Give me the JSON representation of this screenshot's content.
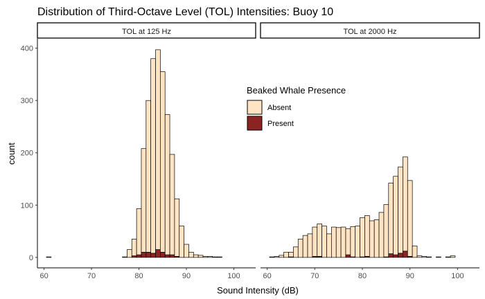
{
  "chart_data": {
    "type": "bar",
    "title": "Distribution of Third-Octave Level (TOL) Intensities: Buoy 10",
    "xlabel": "Sound Intensity (dB)",
    "ylabel": "count",
    "xlim": [
      58.6,
      104.6
    ],
    "ylim": [
      -20,
      418
    ],
    "x_ticks": [
      60,
      70,
      80,
      90,
      100
    ],
    "y_ticks": [
      0,
      100,
      200,
      300,
      400
    ],
    "bin_width": 1,
    "grid": false,
    "stacked": true,
    "legend": {
      "title": "Beaked Whale Presence",
      "placement": "inside-center-right",
      "entries": [
        {
          "label": "Absent",
          "color": "#FFE4C4"
        },
        {
          "label": "Present",
          "color": "#8B2323"
        }
      ]
    },
    "panels": [
      {
        "name": "TOL at 125 Hz",
        "bin_centers": [
          61,
          62,
          63,
          64,
          65,
          66,
          67,
          68,
          69,
          70,
          71,
          72,
          73,
          74,
          75,
          76,
          77,
          78,
          79,
          80,
          81,
          82,
          83,
          84,
          85,
          86,
          87,
          88,
          89,
          90,
          91,
          92,
          93,
          94,
          95,
          96,
          97,
          98,
          99,
          100,
          101,
          102
        ],
        "series": [
          {
            "name": "Absent",
            "values": [
              1,
              0,
              0,
              0,
              0,
              0,
              0,
              0,
              0,
              0,
              0,
              0,
              0,
              0,
              0,
              0,
              1,
              15,
              32,
              88,
              198,
              290,
              372,
              382,
              345,
              268,
              192,
              110,
              60,
              25,
              10,
              5,
              4,
              2,
              2,
              1,
              1,
              0,
              0,
              0,
              0,
              0
            ]
          },
          {
            "name": "Present",
            "values": [
              0,
              0,
              0,
              0,
              0,
              0,
              0,
              0,
              0,
              0,
              0,
              0,
              0,
              0,
              0,
              0,
              0,
              0,
              3,
              5,
              10,
              10,
              8,
              15,
              10,
              5,
              5,
              2,
              0,
              0,
              0,
              0,
              0,
              0,
              0,
              0,
              0,
              0,
              0,
              0,
              0,
              0
            ]
          }
        ]
      },
      {
        "name": "TOL at 2000 Hz",
        "bin_centers": [
          61,
          62,
          63,
          64,
          65,
          66,
          67,
          68,
          69,
          70,
          71,
          72,
          73,
          74,
          75,
          76,
          77,
          78,
          79,
          80,
          81,
          82,
          83,
          84,
          85,
          86,
          87,
          88,
          89,
          90,
          91,
          92,
          93,
          94,
          95,
          96,
          97,
          98,
          99,
          100,
          101,
          102
        ],
        "series": [
          {
            "name": "Absent",
            "values": [
              1,
              2,
              4,
              10,
              9,
              20,
              35,
              42,
              45,
              56,
              62,
              60,
              45,
              58,
              57,
              58,
              50,
              58,
              60,
              75,
              78,
              70,
              72,
              86,
              100,
              135,
              150,
              165,
              180,
              145,
              22,
              3,
              2,
              1,
              0,
              1,
              0,
              1,
              3,
              0,
              0,
              0
            ]
          },
          {
            "name": "Present",
            "values": [
              0,
              0,
              0,
              0,
              1,
              0,
              0,
              0,
              0,
              2,
              2,
              0,
              0,
              0,
              0,
              0,
              5,
              1,
              0,
              1,
              2,
              0,
              0,
              0,
              1,
              7,
              5,
              8,
              12,
              2,
              0,
              0,
              0,
              0,
              0,
              0,
              0,
              0,
              0,
              0,
              0,
              0
            ]
          }
        ]
      }
    ]
  }
}
